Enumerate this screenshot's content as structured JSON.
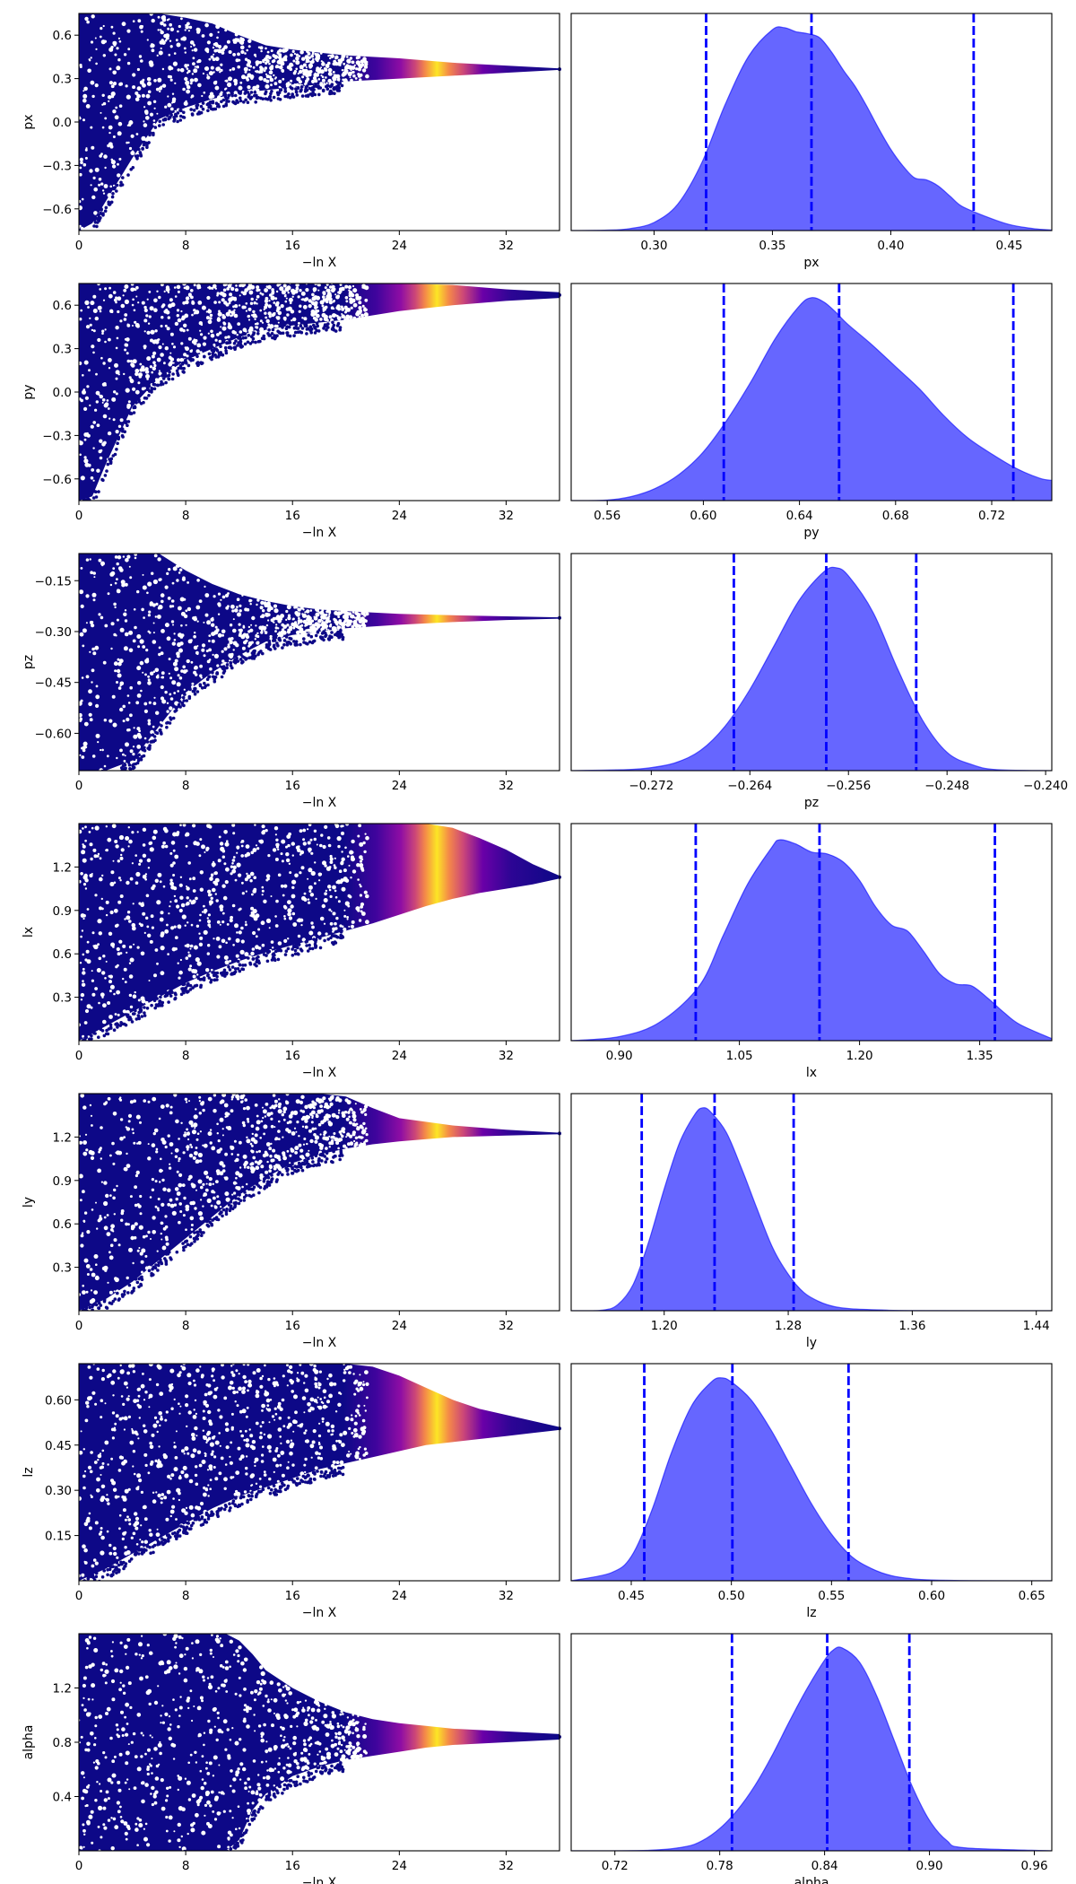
{
  "chart_data": [
    {
      "type": "scatter",
      "param": "px",
      "xlabel": "−ln X",
      "ylabel": "px",
      "xlim": [
        0,
        36
      ],
      "ylim": [
        -0.75,
        0.75
      ],
      "xticks": [
        0,
        8,
        16,
        24,
        32
      ],
      "yticks": [
        -0.6,
        -0.3,
        0.0,
        0.3,
        0.6
      ],
      "ytick_labels": [
        "−0.6",
        "−0.3",
        "0.0",
        "0.3",
        "0.6"
      ],
      "envelope": {
        "x": [
          0,
          1,
          2,
          4,
          6,
          8,
          10,
          12,
          14,
          16,
          18,
          20,
          24,
          28,
          32,
          36
        ],
        "upper": [
          0.75,
          0.75,
          0.75,
          0.75,
          0.75,
          0.72,
          0.68,
          0.6,
          0.53,
          0.5,
          0.48,
          0.46,
          0.44,
          0.41,
          0.39,
          0.37
        ],
        "lower": [
          -0.75,
          -0.7,
          -0.55,
          -0.25,
          0.02,
          0.1,
          0.16,
          0.2,
          0.22,
          0.24,
          0.26,
          0.28,
          0.3,
          0.32,
          0.34,
          0.36
        ]
      },
      "colormap": "plasma",
      "cmap_peak_x": 27
    },
    {
      "type": "area",
      "param": "px",
      "xlabel": "px",
      "xlim": [
        0.265,
        0.468
      ],
      "xticks": [
        0.3,
        0.35,
        0.4,
        0.45
      ],
      "xtick_labels": [
        "0.30",
        "0.35",
        "0.40",
        "0.45"
      ],
      "quantiles": [
        0.322,
        0.3665,
        0.435
      ],
      "density": {
        "x": [
          0.265,
          0.28,
          0.29,
          0.3,
          0.31,
          0.32,
          0.33,
          0.34,
          0.35,
          0.355,
          0.36,
          0.365,
          0.37,
          0.375,
          0.38,
          0.385,
          0.39,
          0.395,
          0.4,
          0.405,
          0.41,
          0.415,
          0.42,
          0.425,
          0.43,
          0.44,
          0.45,
          0.46,
          0.468
        ],
        "y": [
          0,
          0.002,
          0.01,
          0.04,
          0.13,
          0.33,
          0.62,
          0.86,
          0.99,
          1.0,
          0.98,
          0.97,
          0.95,
          0.88,
          0.79,
          0.71,
          0.61,
          0.5,
          0.4,
          0.32,
          0.26,
          0.25,
          0.22,
          0.17,
          0.12,
          0.07,
          0.03,
          0.01,
          0.003
        ]
      },
      "fill": "#0000ff"
    },
    {
      "type": "scatter",
      "param": "py",
      "xlabel": "−ln X",
      "ylabel": "py",
      "xlim": [
        0,
        36
      ],
      "ylim": [
        -0.75,
        0.75
      ],
      "xticks": [
        0,
        8,
        16,
        24,
        32
      ],
      "yticks": [
        -0.6,
        -0.3,
        0.0,
        0.3,
        0.6
      ],
      "ytick_labels": [
        "−0.6",
        "−0.3",
        "0.0",
        "0.3",
        "0.6"
      ],
      "envelope": {
        "x": [
          0,
          1,
          2,
          4,
          6,
          8,
          10,
          12,
          14,
          16,
          20,
          24,
          28,
          32,
          36
        ],
        "upper": [
          0.75,
          0.75,
          0.75,
          0.75,
          0.75,
          0.75,
          0.75,
          0.75,
          0.75,
          0.75,
          0.75,
          0.75,
          0.74,
          0.71,
          0.69
        ],
        "lower": [
          -0.75,
          -0.72,
          -0.5,
          -0.1,
          0.1,
          0.22,
          0.3,
          0.38,
          0.43,
          0.46,
          0.5,
          0.56,
          0.6,
          0.63,
          0.65
        ]
      },
      "colormap": "plasma",
      "cmap_peak_x": 27
    },
    {
      "type": "area",
      "param": "py",
      "xlabel": "py",
      "xlim": [
        0.545,
        0.745
      ],
      "xticks": [
        0.56,
        0.6,
        0.64,
        0.68,
        0.72
      ],
      "xtick_labels": [
        "0.56",
        "0.60",
        "0.64",
        "0.68",
        "0.72"
      ],
      "quantiles": [
        0.6085,
        0.6565,
        0.729
      ],
      "density": {
        "x": [
          0.545,
          0.56,
          0.57,
          0.58,
          0.59,
          0.6,
          0.61,
          0.62,
          0.63,
          0.64,
          0.645,
          0.65,
          0.655,
          0.66,
          0.67,
          0.68,
          0.69,
          0.7,
          0.71,
          0.72,
          0.73,
          0.74,
          0.745
        ],
        "y": [
          0,
          0.003,
          0.02,
          0.06,
          0.13,
          0.24,
          0.4,
          0.59,
          0.8,
          0.96,
          1.0,
          0.98,
          0.93,
          0.87,
          0.77,
          0.66,
          0.55,
          0.42,
          0.31,
          0.23,
          0.16,
          0.11,
          0.1
        ]
      },
      "fill": "#0000ff"
    },
    {
      "type": "scatter",
      "param": "pz",
      "xlabel": "−ln X",
      "ylabel": "pz",
      "xlim": [
        0,
        36
      ],
      "ylim": [
        -0.71,
        -0.07
      ],
      "xticks": [
        0,
        8,
        16,
        24,
        32
      ],
      "yticks": [
        -0.6,
        -0.45,
        -0.3,
        -0.15
      ],
      "ytick_labels": [
        "−0.60",
        "−0.45",
        "−0.30",
        "−0.15"
      ],
      "envelope": {
        "x": [
          0,
          2,
          4,
          6,
          8,
          10,
          12,
          14,
          16,
          18,
          20,
          24,
          28,
          32,
          36
        ],
        "upper": [
          -0.07,
          -0.07,
          -0.07,
          -0.07,
          -0.12,
          -0.16,
          -0.19,
          -0.21,
          -0.225,
          -0.235,
          -0.24,
          -0.248,
          -0.252,
          -0.255,
          -0.258
        ],
        "lower": [
          -0.71,
          -0.71,
          -0.68,
          -0.58,
          -0.48,
          -0.42,
          -0.37,
          -0.33,
          -0.31,
          -0.3,
          -0.29,
          -0.28,
          -0.272,
          -0.266,
          -0.262
        ]
      },
      "colormap": "plasma",
      "cmap_peak_x": 27
    },
    {
      "type": "area",
      "param": "pz",
      "xlabel": "pz",
      "xlim": [
        -0.2785,
        -0.2395
      ],
      "xticks": [
        -0.272,
        -0.264,
        -0.256,
        -0.248,
        -0.24
      ],
      "xtick_labels": [
        "−0.272",
        "−0.264",
        "−0.256",
        "−0.248",
        "−0.240"
      ],
      "quantiles": [
        -0.2653,
        -0.2578,
        -0.2505
      ],
      "density": {
        "x": [
          -0.2785,
          -0.274,
          -0.272,
          -0.27,
          -0.268,
          -0.266,
          -0.264,
          -0.262,
          -0.26,
          -0.258,
          -0.257,
          -0.256,
          -0.254,
          -0.252,
          -0.25,
          -0.248,
          -0.246,
          -0.244,
          -0.2395
        ],
        "y": [
          0,
          0.005,
          0.015,
          0.04,
          0.1,
          0.22,
          0.4,
          0.62,
          0.84,
          0.98,
          1.0,
          0.96,
          0.78,
          0.5,
          0.25,
          0.09,
          0.03,
          0.005,
          0
        ]
      },
      "fill": "#0000ff"
    },
    {
      "type": "scatter",
      "param": "lx",
      "xlabel": "−ln X",
      "ylabel": "lx",
      "xlim": [
        0,
        36
      ],
      "ylim": [
        0,
        1.5
      ],
      "xticks": [
        0,
        8,
        16,
        24,
        32
      ],
      "yticks": [
        0.3,
        0.6,
        0.9,
        1.2
      ],
      "ytick_labels": [
        "0.3",
        "0.6",
        "0.9",
        "1.2"
      ],
      "envelope": {
        "x": [
          0,
          2,
          4,
          6,
          8,
          10,
          12,
          14,
          16,
          18,
          20,
          22,
          24,
          26,
          28,
          30,
          32,
          34,
          36
        ],
        "upper": [
          1.5,
          1.5,
          1.5,
          1.5,
          1.5,
          1.5,
          1.5,
          1.5,
          1.5,
          1.5,
          1.5,
          1.5,
          1.5,
          1.5,
          1.47,
          1.4,
          1.32,
          1.22,
          1.14
        ],
        "lower": [
          0,
          0.1,
          0.2,
          0.3,
          0.4,
          0.48,
          0.55,
          0.61,
          0.66,
          0.71,
          0.76,
          0.81,
          0.87,
          0.93,
          0.98,
          1.02,
          1.05,
          1.08,
          1.12
        ]
      },
      "colormap": "plasma",
      "cmap_peak_x": 27
    },
    {
      "type": "area",
      "param": "lx",
      "xlabel": "lx",
      "xlim": [
        0.84,
        1.44
      ],
      "xticks": [
        0.9,
        1.05,
        1.2,
        1.35
      ],
      "xtick_labels": [
        "0.90",
        "1.05",
        "1.20",
        "1.35"
      ],
      "quantiles": [
        0.9955,
        1.15,
        1.369
      ],
      "density": {
        "x": [
          0.84,
          0.9,
          0.95,
          1.0,
          1.03,
          1.06,
          1.09,
          1.1,
          1.12,
          1.14,
          1.16,
          1.18,
          1.2,
          1.22,
          1.24,
          1.26,
          1.28,
          1.3,
          1.32,
          1.34,
          1.36,
          1.38,
          1.4,
          1.44
        ],
        "y": [
          0,
          0.02,
          0.09,
          0.27,
          0.52,
          0.77,
          0.95,
          0.99,
          0.97,
          0.93,
          0.92,
          0.88,
          0.79,
          0.66,
          0.57,
          0.54,
          0.44,
          0.33,
          0.28,
          0.27,
          0.21,
          0.14,
          0.08,
          0.01
        ]
      },
      "fill": "#0000ff"
    },
    {
      "type": "scatter",
      "param": "ly",
      "xlabel": "−ln X",
      "ylabel": "ly",
      "xlim": [
        0,
        36
      ],
      "ylim": [
        0,
        1.5
      ],
      "xticks": [
        0,
        8,
        16,
        24,
        32
      ],
      "yticks": [
        0.3,
        0.6,
        0.9,
        1.2
      ],
      "ytick_labels": [
        "0.3",
        "0.6",
        "0.9",
        "1.2"
      ],
      "envelope": {
        "x": [
          0,
          2,
          4,
          6,
          8,
          10,
          12,
          14,
          16,
          18,
          20,
          22,
          24,
          28,
          32,
          36
        ],
        "upper": [
          1.5,
          1.5,
          1.5,
          1.5,
          1.5,
          1.5,
          1.5,
          1.5,
          1.5,
          1.5,
          1.48,
          1.4,
          1.33,
          1.28,
          1.25,
          1.23
        ],
        "lower": [
          0,
          0.08,
          0.2,
          0.35,
          0.5,
          0.65,
          0.8,
          0.92,
          1.02,
          1.08,
          1.12,
          1.15,
          1.17,
          1.2,
          1.21,
          1.22
        ]
      },
      "colormap": "plasma",
      "cmap_peak_x": 27
    },
    {
      "type": "area",
      "param": "ly",
      "xlabel": "ly",
      "xlim": [
        1.14,
        1.45
      ],
      "xticks": [
        1.2,
        1.28,
        1.36,
        1.44
      ],
      "xtick_labels": [
        "1.20",
        "1.28",
        "1.36",
        "1.44"
      ],
      "quantiles": [
        1.1855,
        1.2325,
        1.2835
      ],
      "density": {
        "x": [
          1.14,
          1.16,
          1.17,
          1.18,
          1.19,
          1.2,
          1.21,
          1.22,
          1.225,
          1.23,
          1.24,
          1.25,
          1.26,
          1.27,
          1.28,
          1.29,
          1.3,
          1.31,
          1.32,
          1.34,
          1.36,
          1.45
        ],
        "y": [
          0,
          0.003,
          0.03,
          0.13,
          0.34,
          0.6,
          0.83,
          0.97,
          1.0,
          0.98,
          0.88,
          0.7,
          0.5,
          0.31,
          0.18,
          0.09,
          0.045,
          0.02,
          0.01,
          0.004,
          0.001,
          0
        ]
      },
      "fill": "#0000ff"
    },
    {
      "type": "scatter",
      "param": "lz",
      "xlabel": "−ln X",
      "ylabel": "lz",
      "xlim": [
        0,
        36
      ],
      "ylim": [
        0,
        0.72
      ],
      "xticks": [
        0,
        8,
        16,
        24,
        32
      ],
      "yticks": [
        0.15,
        0.3,
        0.45,
        0.6
      ],
      "ytick_labels": [
        "0.15",
        "0.30",
        "0.45",
        "0.60"
      ],
      "envelope": {
        "x": [
          0,
          2,
          4,
          6,
          8,
          10,
          12,
          14,
          16,
          18,
          20,
          22,
          24,
          26,
          28,
          30,
          32,
          34,
          36
        ],
        "upper": [
          0.72,
          0.72,
          0.72,
          0.72,
          0.72,
          0.72,
          0.72,
          0.72,
          0.72,
          0.72,
          0.72,
          0.71,
          0.68,
          0.64,
          0.6,
          0.57,
          0.55,
          0.53,
          0.51
        ],
        "lower": [
          0,
          0.04,
          0.09,
          0.14,
          0.19,
          0.24,
          0.28,
          0.31,
          0.34,
          0.37,
          0.39,
          0.41,
          0.43,
          0.45,
          0.46,
          0.47,
          0.48,
          0.49,
          0.5
        ]
      },
      "colormap": "plasma",
      "cmap_peak_x": 27
    },
    {
      "type": "area",
      "param": "lz",
      "xlabel": "lz",
      "xlim": [
        0.42,
        0.66
      ],
      "xticks": [
        0.45,
        0.5,
        0.55,
        0.6,
        0.65
      ],
      "xtick_labels": [
        "0.45",
        "0.50",
        "0.55",
        "0.60",
        "0.65"
      ],
      "quantiles": [
        0.4565,
        0.5005,
        0.5585
      ],
      "density": {
        "x": [
          0.42,
          0.44,
          0.45,
          0.46,
          0.47,
          0.48,
          0.49,
          0.495,
          0.5,
          0.51,
          0.52,
          0.53,
          0.54,
          0.55,
          0.56,
          0.57,
          0.58,
          0.59,
          0.6,
          0.62,
          0.66
        ],
        "y": [
          0,
          0.04,
          0.12,
          0.34,
          0.63,
          0.86,
          0.98,
          1.0,
          0.98,
          0.89,
          0.74,
          0.56,
          0.38,
          0.23,
          0.12,
          0.06,
          0.025,
          0.01,
          0.004,
          0.001,
          0
        ]
      },
      "fill": "#0000ff"
    },
    {
      "type": "scatter",
      "param": "alpha",
      "xlabel": "−ln X",
      "ylabel": "alpha",
      "xlim": [
        0,
        36
      ],
      "ylim": [
        0,
        1.6
      ],
      "xticks": [
        0,
        8,
        16,
        24,
        32
      ],
      "yticks": [
        0.4,
        0.8,
        1.2
      ],
      "ytick_labels": [
        "0.4",
        "0.8",
        "1.2"
      ],
      "envelope": {
        "x": [
          0,
          4,
          8,
          11,
          12,
          13,
          14,
          16,
          18,
          20,
          22,
          24,
          26,
          28,
          30,
          32,
          34,
          36
        ],
        "upper": [
          1.6,
          1.6,
          1.6,
          1.6,
          1.55,
          1.45,
          1.33,
          1.2,
          1.1,
          1.02,
          0.97,
          0.94,
          0.92,
          0.9,
          0.89,
          0.88,
          0.87,
          0.86
        ],
        "lower": [
          0,
          0.0,
          0.0,
          0.0,
          0.08,
          0.3,
          0.42,
          0.55,
          0.62,
          0.67,
          0.7,
          0.73,
          0.76,
          0.78,
          0.79,
          0.8,
          0.81,
          0.82
        ]
      },
      "colormap": "plasma",
      "cmap_peak_x": 27
    },
    {
      "type": "area",
      "param": "alpha",
      "xlabel": "alpha",
      "xlim": [
        0.695,
        0.97
      ],
      "xticks": [
        0.72,
        0.78,
        0.84,
        0.9,
        0.96
      ],
      "xtick_labels": [
        "0.72",
        "0.78",
        "0.84",
        "0.90",
        "0.96"
      ],
      "quantiles": [
        0.787,
        0.8415,
        0.8885
      ],
      "density": {
        "x": [
          0.695,
          0.74,
          0.76,
          0.77,
          0.78,
          0.79,
          0.8,
          0.81,
          0.82,
          0.83,
          0.84,
          0.845,
          0.85,
          0.86,
          0.87,
          0.88,
          0.89,
          0.9,
          0.91,
          0.92,
          0.97
        ],
        "y": [
          0,
          0.003,
          0.02,
          0.05,
          0.11,
          0.2,
          0.32,
          0.47,
          0.64,
          0.8,
          0.94,
          0.99,
          1.0,
          0.93,
          0.76,
          0.54,
          0.32,
          0.15,
          0.05,
          0.015,
          0
        ]
      },
      "fill": "#0000ff"
    }
  ]
}
